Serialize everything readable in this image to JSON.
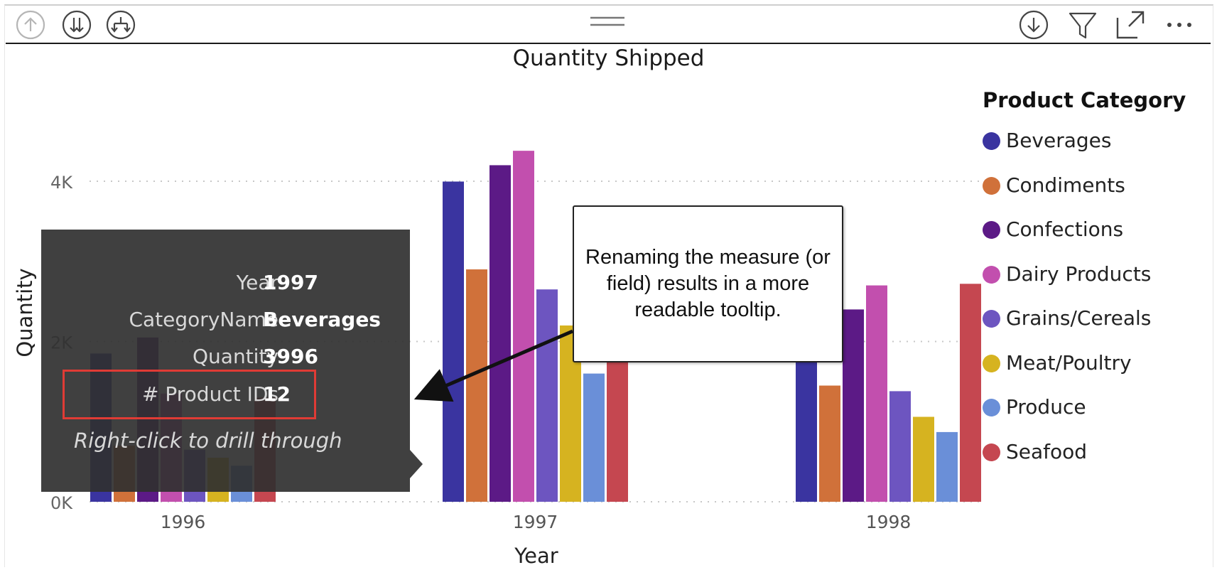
{
  "toolbar": {
    "left_icons": [
      "drill-up-icon",
      "drill-down-all-icon",
      "expand-hierarchy-icon"
    ],
    "center_icon": "drag-handle-icon",
    "right_icons": [
      "drill-mode-icon",
      "filter-icon",
      "focus-mode-icon",
      "more-options-icon"
    ]
  },
  "chart_data": {
    "type": "bar",
    "title": "Quantity Shipped",
    "xlabel": "Year",
    "ylabel": "Quantity",
    "categories": [
      "1996",
      "1997",
      "1998"
    ],
    "y_ticks": [
      "0K",
      "2K",
      "4K"
    ],
    "ylim": [
      0,
      4500
    ],
    "grid": true,
    "legend_position": "right",
    "legend_title": "Product Category",
    "series": [
      {
        "name": "Beverages",
        "color": "#3a34a0",
        "values": [
          1850,
          3996,
          2050
        ]
      },
      {
        "name": "Condiments",
        "color": "#d0713a",
        "values": [
          700,
          2900,
          1450
        ]
      },
      {
        "name": "Confections",
        "color": "#5c1a86",
        "values": [
          2050,
          4200,
          2400
        ]
      },
      {
        "name": "Dairy Products",
        "color": "#c24fae",
        "values": [
          1350,
          4380,
          2700
        ]
      },
      {
        "name": "Grains/Cereals",
        "color": "#6d55c0",
        "values": [
          650,
          2650,
          1380
        ]
      },
      {
        "name": "Meat/Poultry",
        "color": "#d6b320",
        "values": [
          550,
          2200,
          1060
        ]
      },
      {
        "name": "Produce",
        "color": "#6a8fd8",
        "values": [
          450,
          1600,
          870
        ]
      },
      {
        "name": "Seafood",
        "color": "#c54750",
        "values": [
          1300,
          2300,
          2720
        ]
      }
    ]
  },
  "tooltip": {
    "rows": [
      {
        "label": "Year",
        "value": "1997"
      },
      {
        "label": "CategoryName",
        "value": "Beverages"
      },
      {
        "label": "Quantity",
        "value": "3996"
      },
      {
        "label": "# Product IDs",
        "value": "12"
      }
    ],
    "footer": "Right-click to drill through",
    "highlight_color": "#e03b35"
  },
  "callout": {
    "text": "Renaming the measure (or field) results in a more readable tooltip."
  }
}
